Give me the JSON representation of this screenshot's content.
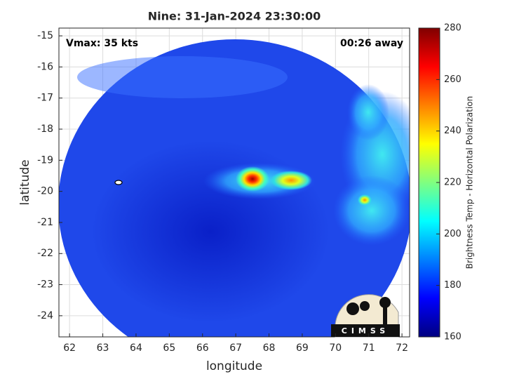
{
  "chart_data": {
    "type": "image",
    "title": "Nine: 31-Jan-2024 23:30:00",
    "annotations": [
      "Vmax: 35 kts",
      "00:26 away"
    ],
    "xlabel": "longitude",
    "ylabel": "latitude",
    "xlim": [
      61.68,
      72.23
    ],
    "xticks": [
      62,
      63,
      64,
      65,
      66,
      67,
      68,
      69,
      70,
      71,
      72
    ],
    "ylim": [
      -24.68,
      -14.75
    ],
    "yticks": [
      -24,
      -23,
      -22,
      -21,
      -20,
      -19,
      -18,
      -17,
      -16,
      -15
    ],
    "grid": true,
    "colorbar": {
      "label": "Brightness Temp - Horizontal Polarization",
      "colormap": "jet",
      "clim": [
        160,
        280
      ],
      "ticks": [
        160,
        180,
        200,
        220,
        240,
        260,
        280
      ]
    },
    "logo": "CIMSS"
  }
}
